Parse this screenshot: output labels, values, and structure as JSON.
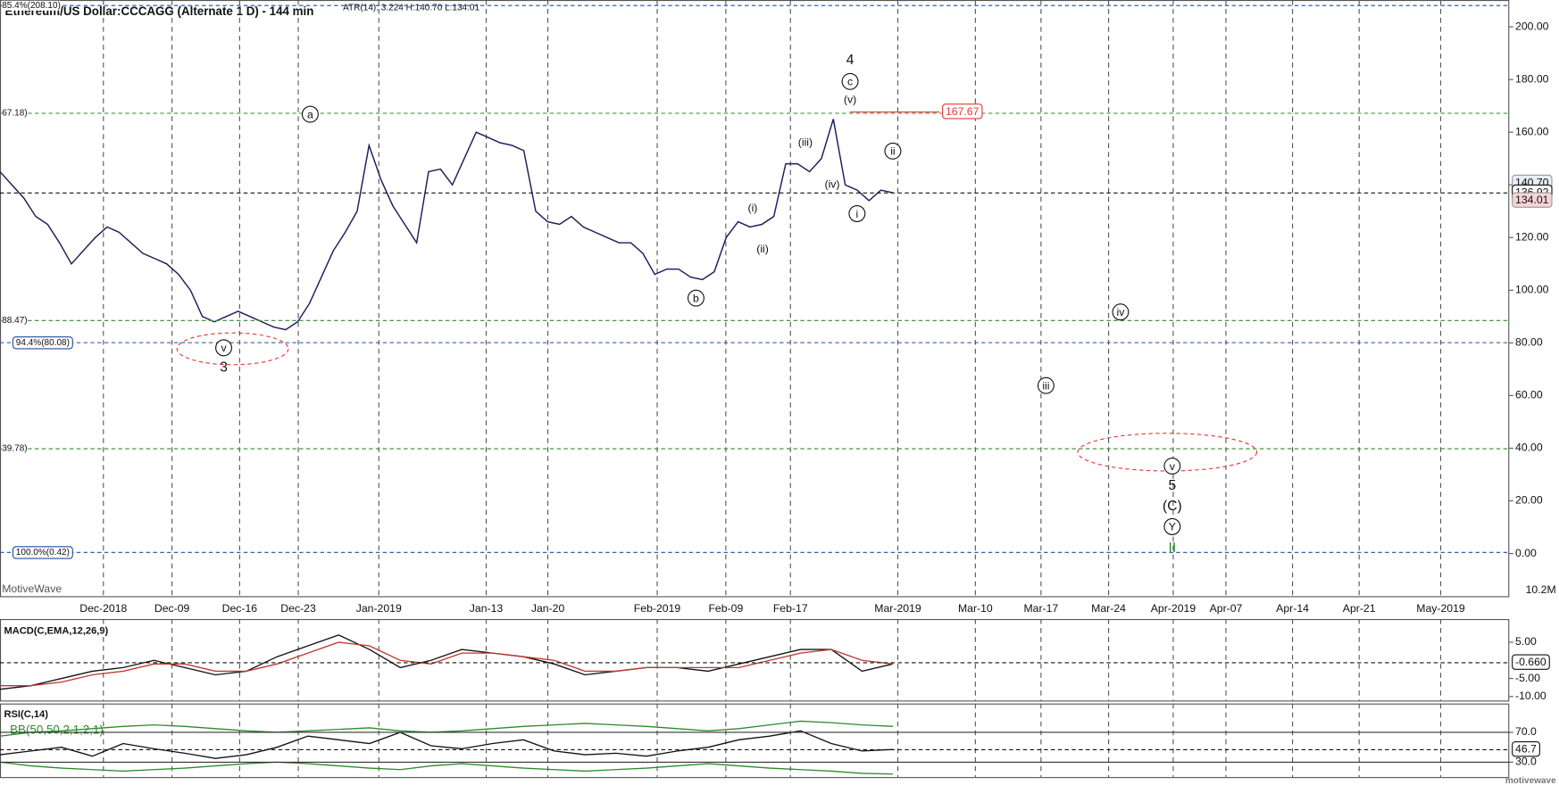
{
  "chart_data": [
    {
      "type": "line",
      "title": "Ethereum/US Dollar:CCCAGG (Alternate 1 D) - 144 min",
      "subtitle": "ATR(14): 3.224 H:140.70 L:134.01",
      "brand": "MotiveWave",
      "watermark": "motivewave",
      "color": "#1a1f5a",
      "values": [
        145,
        140,
        135,
        128,
        125,
        118,
        110,
        115,
        120,
        124,
        122,
        118,
        114,
        112,
        110,
        106,
        100,
        90,
        88,
        90,
        92,
        90,
        88,
        86,
        85,
        88,
        95,
        105,
        115,
        122,
        130,
        155,
        142,
        132,
        125,
        118,
        145,
        146,
        140,
        150,
        160,
        158,
        156,
        155,
        153,
        130,
        126,
        125,
        128,
        124,
        122,
        120,
        118,
        118,
        114,
        106,
        108,
        108,
        105,
        104,
        107,
        120,
        126,
        124,
        125,
        128,
        148,
        148,
        145,
        150,
        165,
        140,
        138,
        134,
        138,
        137
      ],
      "ylim": [
        -16.2,
        210.2
      ],
      "yticks": [
        {
          "value": 0,
          "label": "0.00"
        },
        {
          "value": 20,
          "label": "20.00"
        },
        {
          "value": 40,
          "label": "40.00"
        },
        {
          "value": 60,
          "label": "60.00"
        },
        {
          "value": 80,
          "label": "80.00"
        },
        {
          "value": 100,
          "label": "100.00"
        },
        {
          "value": 120,
          "label": "120.00"
        },
        {
          "value": 140,
          "label": "140.00"
        },
        {
          "value": 160,
          "label": "160.00"
        },
        {
          "value": 180,
          "label": "180.00"
        },
        {
          "value": 200,
          "label": "200.00"
        }
      ],
      "x_labels": [
        "Dec-2018",
        "Dec-09",
        "Dec-16",
        "Dec-23",
        "Jan-2019",
        "Jan-13",
        "Jan-20",
        "Feb-2019",
        "Feb-09",
        "Feb-17",
        "Mar-2019",
        "Mar-10",
        "Mar-17",
        "Mar-24",
        "Apr-2019",
        "Apr-07",
        "Apr-14",
        "Apr-21",
        "May-2019"
      ],
      "levels": [
        {
          "value": 208.1,
          "label": "85.4%(208.10)",
          "color": "#1f4e9c",
          "boxed": false
        },
        {
          "value": 167.18,
          "label": "67.18)",
          "color": "#2e8b2e",
          "boxed": false
        },
        {
          "value": 88.47,
          "label": "88.47)",
          "color": "#2e8b2e",
          "boxed": false
        },
        {
          "value": 80.08,
          "label": "94.4%(80.08)",
          "color": "#1f4e9c",
          "boxed": true
        },
        {
          "value": 39.78,
          "label": "39.78)",
          "color": "#2e8b2e",
          "boxed": false
        },
        {
          "value": 0.42,
          "label": "100.0%(0.42)",
          "color": "#1f4e9c",
          "boxed": true
        }
      ],
      "price_labels": [
        {
          "value": 140.7,
          "label": "140.70"
        },
        {
          "value": 136.92,
          "label": "136.92"
        },
        {
          "value": 134.01,
          "label": "134.01"
        }
      ],
      "peak": {
        "value": 167.67,
        "label": "167.67"
      },
      "volume_label": "10.2M",
      "annotations": [
        "4",
        "c",
        "(v)",
        "a",
        "(iii)",
        "ii",
        "(iv)",
        "i",
        "(i)",
        "(ii)",
        "b",
        "v",
        "3",
        "iv",
        "iii",
        "v",
        "5",
        "(C)",
        "Y",
        "II"
      ]
    },
    {
      "type": "line",
      "title": "MACD(C,EMA,12,26,9)",
      "ylim": [
        -11.1,
        11.4
      ],
      "yticks": [
        {
          "value": 5,
          "label": "5.00"
        },
        {
          "value": -5,
          "label": "-5.00"
        },
        {
          "value": -10,
          "label": "-10.00"
        }
      ],
      "last": {
        "value": -0.66,
        "label": "-0.660"
      },
      "series": [
        {
          "color": "#111111",
          "values": [
            -8,
            -7,
            -5,
            -3,
            -2,
            0,
            -2,
            -4,
            -3,
            1,
            4,
            7,
            3,
            -2,
            0,
            3,
            2,
            1,
            -1,
            -4,
            -3,
            -2,
            -2,
            -3,
            -1,
            1,
            3,
            3,
            -3,
            -1
          ]
        },
        {
          "color": "#c0392b",
          "values": [
            -7,
            -7,
            -6,
            -4,
            -3,
            -1,
            -1,
            -3,
            -3,
            -1,
            2,
            5,
            4,
            0,
            -1,
            2,
            2,
            1,
            0,
            -3,
            -3,
            -2,
            -2,
            -2,
            -2,
            0,
            2,
            3,
            0,
            -1
          ]
        }
      ]
    },
    {
      "type": "line",
      "title": "RSI(C,14)",
      "subtitle": "BB(50,50,2,1,2,1)",
      "ylim": [
        10,
        108.7
      ],
      "yticks": [
        {
          "value": 30,
          "label": "30.0"
        },
        {
          "value": 70,
          "label": "70.0"
        }
      ],
      "last": {
        "value": 46.7,
        "label": "46.7"
      },
      "series": [
        {
          "color": "#111111",
          "values": [
            40,
            45,
            50,
            38,
            55,
            48,
            42,
            35,
            40,
            50,
            65,
            60,
            55,
            70,
            52,
            48,
            55,
            60,
            45,
            40,
            42,
            38,
            45,
            50,
            60,
            65,
            72,
            55,
            45,
            47
          ]
        },
        {
          "color": "#2e8b2e",
          "values": [
            65,
            70,
            72,
            75,
            78,
            80,
            78,
            75,
            72,
            70,
            72,
            74,
            76,
            72,
            70,
            72,
            75,
            78,
            80,
            82,
            80,
            78,
            75,
            72,
            75,
            80,
            85,
            83,
            80,
            78
          ]
        },
        {
          "color": "#2e8b2e",
          "values": [
            30,
            25,
            22,
            20,
            18,
            20,
            22,
            25,
            28,
            30,
            28,
            25,
            22,
            20,
            25,
            28,
            25,
            22,
            20,
            18,
            20,
            22,
            25,
            28,
            25,
            22,
            20,
            18,
            15,
            14
          ]
        }
      ]
    }
  ]
}
